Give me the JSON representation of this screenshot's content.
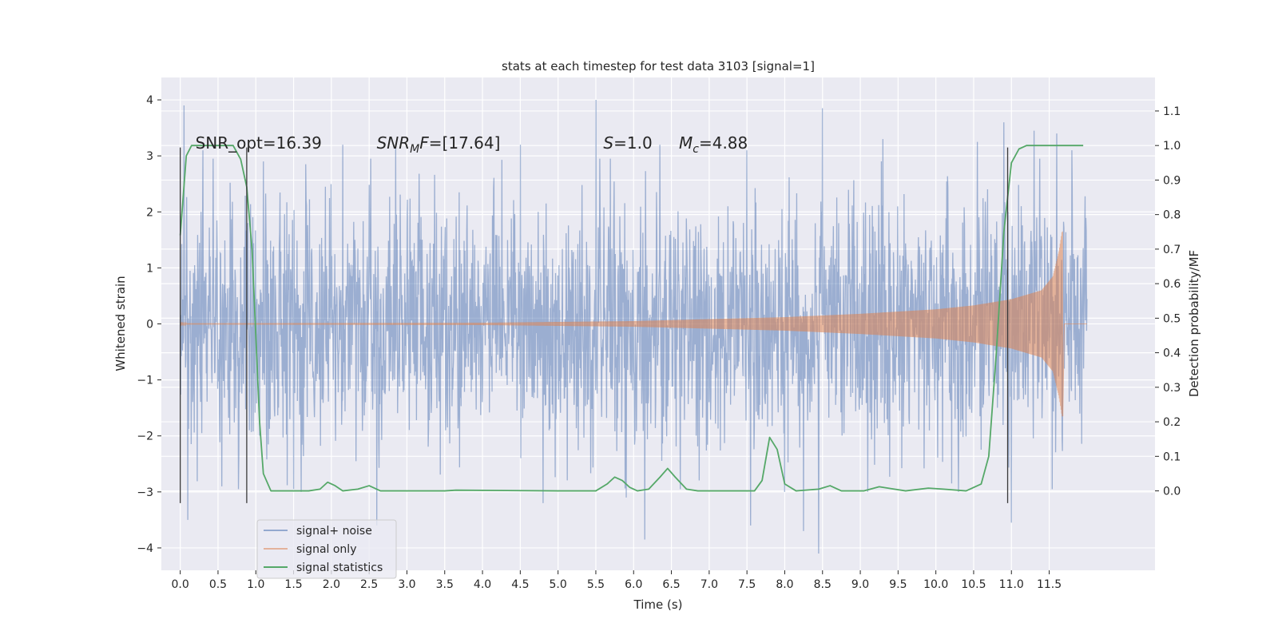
{
  "chart_data": {
    "type": "line",
    "title": "stats at each timestep for test data 3103 [signal=1]",
    "xlabel": "Time (s)",
    "ylabel": "Whitened strain",
    "y2label": "Detection probability/MF",
    "xlim": [
      -0.25,
      12.9
    ],
    "ylim": [
      -4.4,
      4.4
    ],
    "y2lim": [
      -0.23,
      1.197
    ],
    "grid": true,
    "legend_position": "lower-left",
    "x_ticks": [
      0.0,
      0.5,
      1.0,
      1.5,
      2.0,
      2.5,
      3.0,
      3.5,
      4.0,
      4.5,
      5.0,
      5.5,
      6.0,
      6.5,
      7.0,
      7.5,
      8.0,
      8.5,
      9.0,
      9.5,
      10.0,
      10.5,
      11.0,
      11.5
    ],
    "x_tick_labels": [
      "0.0",
      "0.5",
      "1.0",
      "1.5",
      "2.0",
      "2.5",
      "3.0",
      "3.5",
      "4.0",
      "4.5",
      "5.0",
      "5.5",
      "6.0",
      "6.5",
      "7.0",
      "7.5",
      "8.0",
      "8.5",
      "9.0",
      "9.5",
      "10.0",
      "10.5",
      "11.0",
      "11.5"
    ],
    "y_ticks": [
      -4,
      -3,
      -2,
      -1,
      0,
      1,
      2,
      3,
      4
    ],
    "y_tick_labels": [
      "−4",
      "−3",
      "−2",
      "−1",
      "0",
      "1",
      "2",
      "3",
      "4"
    ],
    "y2_ticks": [
      0.0,
      0.1,
      0.2,
      0.3,
      0.4,
      0.5,
      0.6,
      0.7,
      0.8,
      0.9,
      1.0,
      1.1
    ],
    "y2_tick_labels": [
      "0.0",
      "0.1",
      "0.2",
      "0.3",
      "0.4",
      "0.5",
      "0.6",
      "0.7",
      "0.8",
      "0.9",
      "1.0",
      "1.1"
    ],
    "annotations": [
      {
        "text": "SNR_opt=16.39",
        "x": 0.2,
        "y": 3.2
      },
      {
        "text": "SNR_MF=[17.64]",
        "x": 2.6,
        "y": 3.2
      },
      {
        "text": "S=1.0",
        "x": 5.6,
        "y": 3.2
      },
      {
        "text": "M_c=4.88",
        "x": 6.6,
        "y": 3.2
      }
    ],
    "vertical_lines": [
      {
        "x": 0.0,
        "ymin": -3.2,
        "ymax": 3.15
      },
      {
        "x": 0.88,
        "ymin": -3.2,
        "ymax": 3.15
      },
      {
        "x": 10.95,
        "ymin": -3.2,
        "ymax": 3.15
      }
    ],
    "series": [
      {
        "name": "signal+ noise",
        "color": "#4c72b0",
        "axis": "left",
        "style": "noise",
        "t_range": [
          0.0,
          12.0
        ],
        "typical_envelope": 1.9,
        "spikes": [
          [
            0.05,
            3.9
          ],
          [
            0.1,
            -3.5
          ],
          [
            0.3,
            3.1
          ],
          [
            0.55,
            -2.9
          ],
          [
            1.1,
            2.9
          ],
          [
            1.6,
            -3.0
          ],
          [
            2.15,
            3.2
          ],
          [
            2.6,
            -3.6
          ],
          [
            2.85,
            3.2
          ],
          [
            4.5,
            3.2
          ],
          [
            4.8,
            -3.2
          ],
          [
            5.5,
            4.0
          ],
          [
            5.9,
            -3.1
          ],
          [
            6.15,
            -3.85
          ],
          [
            6.35,
            3.2
          ],
          [
            7.5,
            3.1
          ],
          [
            7.55,
            -3.6
          ],
          [
            8.0,
            -3.0
          ],
          [
            8.25,
            -3.7
          ],
          [
            8.5,
            3.85
          ],
          [
            8.45,
            -4.1
          ],
          [
            9.1,
            -3.0
          ],
          [
            9.3,
            3.3
          ],
          [
            10.3,
            -3.0
          ],
          [
            10.55,
            3.25
          ],
          [
            10.9,
            3.6
          ],
          [
            11.0,
            -3.55
          ],
          [
            11.3,
            3.45
          ],
          [
            11.6,
            3.4
          ],
          [
            11.8,
            3.1
          ]
        ]
      },
      {
        "name": "signal only",
        "color": "#dd8452",
        "axis": "left",
        "style": "chirp",
        "t_range": [
          0.0,
          11.68
        ],
        "envelope_points": [
          [
            0.0,
            0.01
          ],
          [
            4.0,
            0.02
          ],
          [
            6.0,
            0.05
          ],
          [
            8.0,
            0.12
          ],
          [
            9.0,
            0.18
          ],
          [
            10.0,
            0.26
          ],
          [
            10.5,
            0.33
          ],
          [
            11.0,
            0.44
          ],
          [
            11.4,
            0.6
          ],
          [
            11.55,
            0.85
          ],
          [
            11.63,
            1.3
          ],
          [
            11.67,
            1.65
          ]
        ]
      },
      {
        "name": "signal statistics",
        "color": "#55a868",
        "axis": "right",
        "style": "line",
        "points": [
          [
            0.0,
            0.74
          ],
          [
            0.08,
            0.97
          ],
          [
            0.15,
            1.0
          ],
          [
            0.7,
            1.0
          ],
          [
            0.8,
            0.96
          ],
          [
            0.88,
            0.88
          ],
          [
            0.95,
            0.7
          ],
          [
            1.05,
            0.2
          ],
          [
            1.1,
            0.05
          ],
          [
            1.2,
            0.0
          ],
          [
            1.7,
            0.0
          ],
          [
            1.85,
            0.005
          ],
          [
            1.95,
            0.025
          ],
          [
            2.05,
            0.015
          ],
          [
            2.15,
            0.0
          ],
          [
            2.35,
            0.005
          ],
          [
            2.5,
            0.015
          ],
          [
            2.65,
            0.0
          ],
          [
            3.5,
            0.0
          ],
          [
            3.65,
            0.002
          ],
          [
            5.0,
            0.0
          ],
          [
            5.5,
            0.0
          ],
          [
            5.65,
            0.02
          ],
          [
            5.75,
            0.04
          ],
          [
            5.85,
            0.03
          ],
          [
            5.95,
            0.01
          ],
          [
            6.05,
            0.0
          ],
          [
            6.2,
            0.005
          ],
          [
            6.35,
            0.04
          ],
          [
            6.45,
            0.065
          ],
          [
            6.55,
            0.04
          ],
          [
            6.7,
            0.005
          ],
          [
            6.85,
            0.0
          ],
          [
            7.6,
            0.0
          ],
          [
            7.7,
            0.03
          ],
          [
            7.8,
            0.155
          ],
          [
            7.9,
            0.12
          ],
          [
            8.0,
            0.02
          ],
          [
            8.15,
            0.0
          ],
          [
            8.45,
            0.005
          ],
          [
            8.6,
            0.015
          ],
          [
            8.75,
            0.0
          ],
          [
            9.05,
            0.0
          ],
          [
            9.25,
            0.012
          ],
          [
            9.45,
            0.005
          ],
          [
            9.6,
            0.0
          ],
          [
            9.9,
            0.008
          ],
          [
            10.1,
            0.005
          ],
          [
            10.4,
            0.0
          ],
          [
            10.6,
            0.02
          ],
          [
            10.7,
            0.1
          ],
          [
            10.8,
            0.4
          ],
          [
            10.9,
            0.75
          ],
          [
            11.0,
            0.95
          ],
          [
            11.1,
            0.99
          ],
          [
            11.2,
            1.0
          ],
          [
            11.95,
            1.0
          ]
        ]
      }
    ]
  }
}
